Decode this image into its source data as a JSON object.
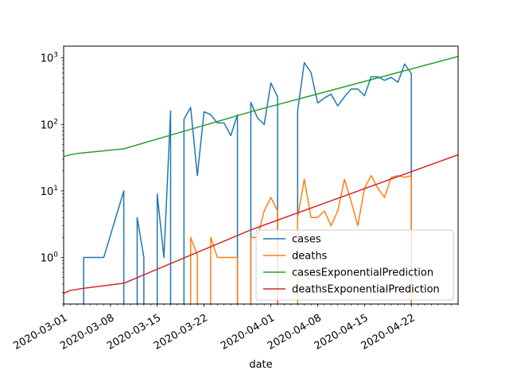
{
  "chart_data": {
    "type": "line",
    "title": "",
    "xlabel": "date",
    "ylabel": "",
    "yscale": "log",
    "ylim": [
      0.2,
      1500
    ],
    "xlim": [
      "2020-03-01",
      "2020-04-29"
    ],
    "x_ticks": [
      "2020-03-01",
      "2020-03-08",
      "2020-03-15",
      "2020-03-22",
      "2020-04-01",
      "2020-04-08",
      "2020-04-15",
      "2020-04-22"
    ],
    "y_ticks": [
      {
        "value": 1,
        "label": "10⁰",
        "base": "10",
        "exp": "0"
      },
      {
        "value": 10,
        "label": "10¹",
        "base": "10",
        "exp": "1"
      },
      {
        "value": 100,
        "label": "10²",
        "base": "10",
        "exp": "2"
      },
      {
        "value": 1000,
        "label": "10³",
        "base": "10",
        "exp": "3"
      }
    ],
    "grid": false,
    "legend_position": "lower-right",
    "series": [
      {
        "name": "cases",
        "color": "#1f77b4",
        "points": [
          [
            "2020-03-04",
            0
          ],
          [
            "2020-03-04",
            1
          ],
          [
            "2020-03-07",
            1
          ],
          [
            "2020-03-10",
            10
          ],
          [
            "2020-03-10",
            0
          ],
          [
            "2020-03-11",
            0
          ],
          [
            "2020-03-12",
            0
          ],
          [
            "2020-03-12",
            4
          ],
          [
            "2020-03-13",
            1
          ],
          [
            "2020-03-13",
            0
          ],
          [
            "2020-03-14",
            0
          ],
          [
            "2020-03-15",
            0
          ],
          [
            "2020-03-15",
            9
          ],
          [
            "2020-03-16",
            1
          ],
          [
            "2020-03-17",
            160
          ],
          [
            "2020-03-17",
            0
          ],
          [
            "2020-03-18",
            0
          ],
          [
            "2020-03-19",
            0
          ],
          [
            "2020-03-19",
            120
          ],
          [
            "2020-03-20",
            180
          ],
          [
            "2020-03-21",
            17
          ],
          [
            "2020-03-22",
            155
          ],
          [
            "2020-03-23",
            140
          ],
          [
            "2020-03-24",
            105
          ],
          [
            "2020-03-25",
            105
          ],
          [
            "2020-03-26",
            68
          ],
          [
            "2020-03-27",
            140
          ],
          [
            "2020-03-27",
            0
          ],
          [
            "2020-03-28",
            0
          ],
          [
            "2020-03-29",
            0
          ],
          [
            "2020-03-29",
            215
          ],
          [
            "2020-03-30",
            125
          ],
          [
            "2020-03-31",
            100
          ],
          [
            "2020-04-01",
            420
          ],
          [
            "2020-04-02",
            260
          ],
          [
            "2020-04-02",
            0
          ],
          [
            "2020-04-03",
            0
          ],
          [
            "2020-04-04",
            0
          ],
          [
            "2020-04-05",
            0
          ],
          [
            "2020-04-05",
            160
          ],
          [
            "2020-04-06",
            850
          ],
          [
            "2020-04-07",
            600
          ],
          [
            "2020-04-08",
            210
          ],
          [
            "2020-04-09",
            250
          ],
          [
            "2020-04-10",
            285
          ],
          [
            "2020-04-11",
            190
          ],
          [
            "2020-04-12",
            260
          ],
          [
            "2020-04-13",
            340
          ],
          [
            "2020-04-14",
            340
          ],
          [
            "2020-04-15",
            270
          ],
          [
            "2020-04-16",
            520
          ],
          [
            "2020-04-17",
            520
          ],
          [
            "2020-04-18",
            460
          ],
          [
            "2020-04-19",
            510
          ],
          [
            "2020-04-20",
            430
          ],
          [
            "2020-04-21",
            810
          ],
          [
            "2020-04-22",
            580
          ],
          [
            "2020-04-22",
            0
          ]
        ]
      },
      {
        "name": "deaths",
        "color": "#ff7f0e",
        "points": [
          [
            "2020-03-19",
            0
          ],
          [
            "2020-03-20",
            0
          ],
          [
            "2020-03-20",
            2
          ],
          [
            "2020-03-21",
            1.1
          ],
          [
            "2020-03-21",
            0
          ],
          [
            "2020-03-22",
            0
          ],
          [
            "2020-03-23",
            0
          ],
          [
            "2020-03-23",
            2
          ],
          [
            "2020-03-24",
            1
          ],
          [
            "2020-03-25",
            1
          ],
          [
            "2020-03-26",
            1
          ],
          [
            "2020-03-27",
            1
          ],
          [
            "2020-03-27",
            0
          ],
          [
            "2020-03-28",
            0
          ],
          [
            "2020-03-29",
            0
          ],
          [
            "2020-03-29",
            2
          ],
          [
            "2020-03-30",
            2
          ],
          [
            "2020-03-31",
            5
          ],
          [
            "2020-04-01",
            8
          ],
          [
            "2020-04-02",
            5
          ],
          [
            "2020-04-02",
            0
          ],
          [
            "2020-04-03",
            0
          ],
          [
            "2020-04-04",
            0
          ],
          [
            "2020-04-05",
            0
          ],
          [
            "2020-04-05",
            4
          ],
          [
            "2020-04-06",
            15
          ],
          [
            "2020-04-07",
            4
          ],
          [
            "2020-04-08",
            4
          ],
          [
            "2020-04-09",
            5
          ],
          [
            "2020-04-10",
            3
          ],
          [
            "2020-04-11",
            5
          ],
          [
            "2020-04-12",
            15
          ],
          [
            "2020-04-13",
            7
          ],
          [
            "2020-04-14",
            3
          ],
          [
            "2020-04-15",
            11
          ],
          [
            "2020-04-16",
            17
          ],
          [
            "2020-04-17",
            11
          ],
          [
            "2020-04-18",
            8
          ],
          [
            "2020-04-19",
            16
          ],
          [
            "2020-04-20",
            17
          ],
          [
            "2020-04-21",
            16
          ],
          [
            "2020-04-22",
            17
          ],
          [
            "2020-04-22",
            0
          ]
        ]
      },
      {
        "name": "casesExponentialPrediction",
        "color": "#2ca02c",
        "points": [
          [
            "2020-03-01",
            33
          ],
          [
            "2020-03-02",
            35
          ],
          [
            "2020-03-03",
            36.5
          ],
          [
            "2020-03-10",
            43
          ],
          [
            "2020-03-29",
            155
          ],
          [
            "2020-04-29",
            1050
          ]
        ]
      },
      {
        "name": "deathsExponentialPrediction",
        "color": "#d62728",
        "points": [
          [
            "2020-03-01",
            0.29
          ],
          [
            "2020-03-02",
            0.32
          ],
          [
            "2020-03-04",
            0.345
          ],
          [
            "2020-03-10",
            0.41
          ],
          [
            "2020-03-29",
            2.6
          ],
          [
            "2020-04-29",
            35
          ]
        ]
      }
    ]
  }
}
